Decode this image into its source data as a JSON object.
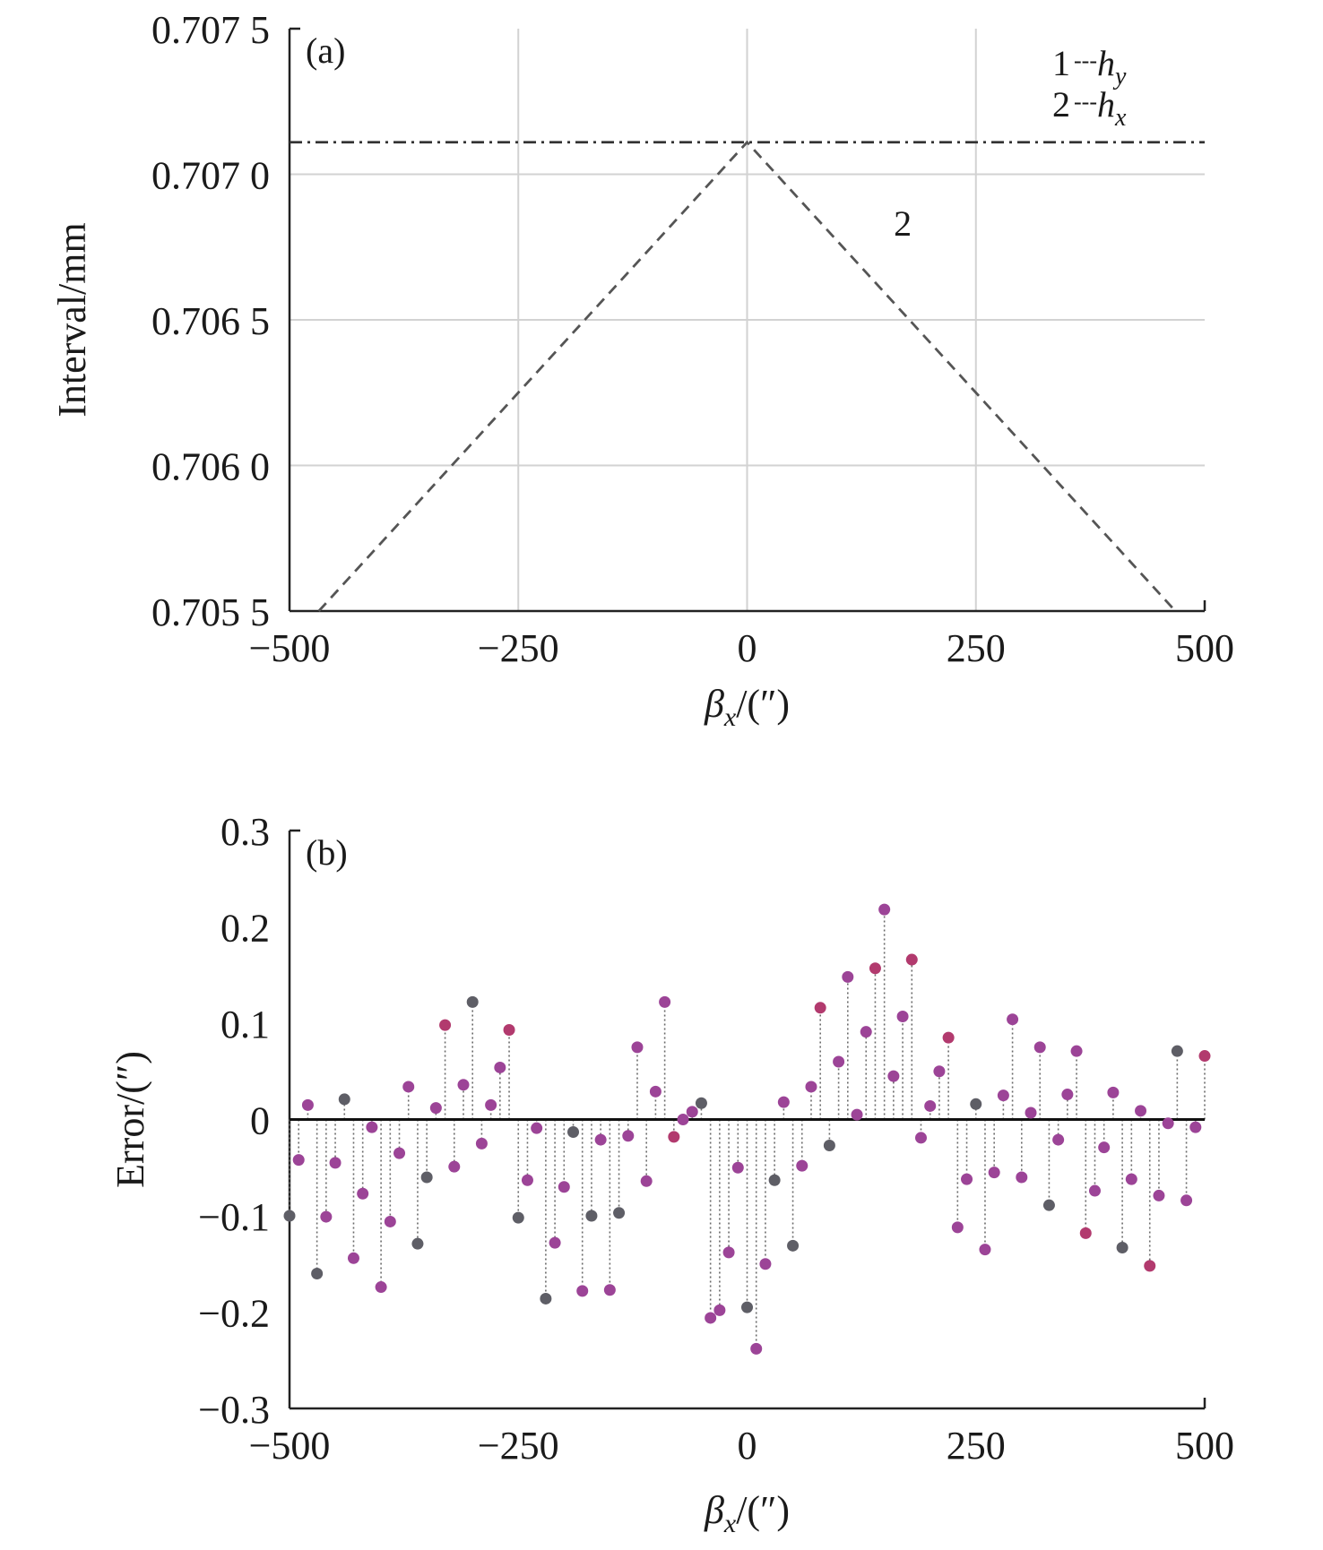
{
  "chart_data": [
    {
      "panel": "(a)",
      "type": "line",
      "xlabel": {
        "sym": "β",
        "sub": "x",
        "unit": "/(″)"
      },
      "ylabel": "Interval/mm",
      "xlim": [
        -500,
        500
      ],
      "ylim": [
        0.7055,
        0.7075
      ],
      "x_ticks": [
        -500,
        -250,
        0,
        250,
        500
      ],
      "x_tick_labels": [
        "−500",
        "−250",
        "0",
        "250",
        "500"
      ],
      "y_ticks": [
        0.7055,
        0.706,
        0.7065,
        0.707,
        0.7075
      ],
      "y_tick_labels": [
        "0.705 5",
        "0.706 0",
        "0.706 5",
        "0.707 0",
        "0.707 5"
      ],
      "grid": true,
      "legend": {
        "position": "top-right",
        "entries": [
          {
            "num": "1",
            "dash": "---",
            "sym": "h",
            "sub": "y"
          },
          {
            "num": "2",
            "dash": "---",
            "sym": "h",
            "sub": "x"
          }
        ]
      },
      "series": [
        {
          "id": "1",
          "style": "dash-dot",
          "x": [
            -500,
            500
          ],
          "y": [
            0.70711,
            0.70711
          ]
        },
        {
          "id": "2",
          "style": "dashed",
          "x": [
            -468,
            0,
            468
          ],
          "y": [
            0.7055,
            0.70711,
            0.7055
          ]
        }
      ],
      "annotations": [
        {
          "text": "2",
          "x": 170,
          "y": 0.70679
        }
      ]
    },
    {
      "panel": "(b)",
      "type": "scatter",
      "style": "stem",
      "xlabel": {
        "sym": "β",
        "sub": "x",
        "unit": "/(″)"
      },
      "ylabel": "Error/(″)",
      "xlim": [
        -500,
        500
      ],
      "ylim": [
        -0.3,
        0.3
      ],
      "x_ticks": [
        -500,
        -250,
        0,
        250,
        500
      ],
      "x_tick_labels": [
        "−500",
        "−250",
        "0",
        "250",
        "500"
      ],
      "y_ticks": [
        -0.3,
        -0.2,
        -0.1,
        0,
        0.1,
        0.2,
        0.3
      ],
      "y_tick_labels": [
        "−0.3",
        "−0.2",
        "−0.1",
        "0",
        "0.1",
        "0.2",
        "0.3"
      ],
      "grid": false,
      "colors": {
        "gray": "#5e5e66",
        "purple": "#9c4497",
        "magenta": "#b23a6e"
      },
      "points": [
        {
          "x": -500,
          "y": -0.1,
          "c": "gray"
        },
        {
          "x": -490,
          "y": -0.042,
          "c": "purple"
        },
        {
          "x": -480,
          "y": 0.015,
          "c": "purple"
        },
        {
          "x": -470,
          "y": -0.16,
          "c": "gray"
        },
        {
          "x": -460,
          "y": -0.101,
          "c": "purple"
        },
        {
          "x": -450,
          "y": -0.045,
          "c": "purple"
        },
        {
          "x": -440,
          "y": 0.021,
          "c": "gray"
        },
        {
          "x": -430,
          "y": -0.144,
          "c": "purple"
        },
        {
          "x": -420,
          "y": -0.077,
          "c": "purple"
        },
        {
          "x": -410,
          "y": -0.008,
          "c": "purple"
        },
        {
          "x": -400,
          "y": -0.174,
          "c": "purple"
        },
        {
          "x": -390,
          "y": -0.106,
          "c": "purple"
        },
        {
          "x": -380,
          "y": -0.035,
          "c": "purple"
        },
        {
          "x": -370,
          "y": 0.034,
          "c": "purple"
        },
        {
          "x": -360,
          "y": -0.129,
          "c": "gray"
        },
        {
          "x": -350,
          "y": -0.06,
          "c": "gray"
        },
        {
          "x": -340,
          "y": 0.012,
          "c": "purple"
        },
        {
          "x": -330,
          "y": 0.098,
          "c": "magenta"
        },
        {
          "x": -320,
          "y": -0.049,
          "c": "purple"
        },
        {
          "x": -310,
          "y": 0.036,
          "c": "purple"
        },
        {
          "x": -300,
          "y": 0.122,
          "c": "gray"
        },
        {
          "x": -290,
          "y": -0.025,
          "c": "purple"
        },
        {
          "x": -280,
          "y": 0.015,
          "c": "purple"
        },
        {
          "x": -270,
          "y": 0.054,
          "c": "purple"
        },
        {
          "x": -260,
          "y": 0.093,
          "c": "magenta"
        },
        {
          "x": -250,
          "y": -0.102,
          "c": "gray"
        },
        {
          "x": -240,
          "y": -0.063,
          "c": "purple"
        },
        {
          "x": -230,
          "y": -0.009,
          "c": "purple"
        },
        {
          "x": -220,
          "y": -0.186,
          "c": "gray"
        },
        {
          "x": -210,
          "y": -0.128,
          "c": "purple"
        },
        {
          "x": -200,
          "y": -0.07,
          "c": "purple"
        },
        {
          "x": -190,
          "y": -0.013,
          "c": "gray"
        },
        {
          "x": -180,
          "y": -0.178,
          "c": "purple"
        },
        {
          "x": -170,
          "y": -0.1,
          "c": "gray"
        },
        {
          "x": -160,
          "y": -0.021,
          "c": "purple"
        },
        {
          "x": -150,
          "y": -0.177,
          "c": "purple"
        },
        {
          "x": -140,
          "y": -0.097,
          "c": "gray"
        },
        {
          "x": -130,
          "y": -0.017,
          "c": "purple"
        },
        {
          "x": -120,
          "y": 0.075,
          "c": "purple"
        },
        {
          "x": -110,
          "y": -0.064,
          "c": "purple"
        },
        {
          "x": -100,
          "y": 0.029,
          "c": "purple"
        },
        {
          "x": -90,
          "y": 0.122,
          "c": "purple"
        },
        {
          "x": -80,
          "y": -0.018,
          "c": "magenta"
        },
        {
          "x": -70,
          "y": 0.0,
          "c": "purple"
        },
        {
          "x": -60,
          "y": 0.008,
          "c": "purple"
        },
        {
          "x": -50,
          "y": 0.017,
          "c": "gray"
        },
        {
          "x": -40,
          "y": -0.206,
          "c": "purple"
        },
        {
          "x": -30,
          "y": -0.198,
          "c": "purple"
        },
        {
          "x": -20,
          "y": -0.138,
          "c": "purple"
        },
        {
          "x": -10,
          "y": -0.05,
          "c": "purple"
        },
        {
          "x": 0,
          "y": -0.195,
          "c": "gray"
        },
        {
          "x": 10,
          "y": -0.238,
          "c": "purple"
        },
        {
          "x": 20,
          "y": -0.15,
          "c": "purple"
        },
        {
          "x": 30,
          "y": -0.063,
          "c": "gray"
        },
        {
          "x": 40,
          "y": 0.018,
          "c": "purple"
        },
        {
          "x": 50,
          "y": -0.131,
          "c": "gray"
        },
        {
          "x": 60,
          "y": -0.048,
          "c": "purple"
        },
        {
          "x": 70,
          "y": 0.034,
          "c": "purple"
        },
        {
          "x": 80,
          "y": 0.116,
          "c": "magenta"
        },
        {
          "x": 90,
          "y": -0.027,
          "c": "gray"
        },
        {
          "x": 100,
          "y": 0.06,
          "c": "purple"
        },
        {
          "x": 110,
          "y": 0.148,
          "c": "purple"
        },
        {
          "x": 120,
          "y": 0.005,
          "c": "purple"
        },
        {
          "x": 130,
          "y": 0.091,
          "c": "purple"
        },
        {
          "x": 140,
          "y": 0.157,
          "c": "magenta"
        },
        {
          "x": 150,
          "y": 0.218,
          "c": "purple"
        },
        {
          "x": 160,
          "y": 0.045,
          "c": "purple"
        },
        {
          "x": 170,
          "y": 0.107,
          "c": "purple"
        },
        {
          "x": 180,
          "y": 0.166,
          "c": "magenta"
        },
        {
          "x": 190,
          "y": -0.019,
          "c": "purple"
        },
        {
          "x": 200,
          "y": 0.014,
          "c": "purple"
        },
        {
          "x": 210,
          "y": 0.05,
          "c": "purple"
        },
        {
          "x": 220,
          "y": 0.085,
          "c": "magenta"
        },
        {
          "x": 230,
          "y": -0.112,
          "c": "purple"
        },
        {
          "x": 240,
          "y": -0.062,
          "c": "purple"
        },
        {
          "x": 250,
          "y": 0.016,
          "c": "gray"
        },
        {
          "x": 260,
          "y": -0.135,
          "c": "purple"
        },
        {
          "x": 270,
          "y": -0.055,
          "c": "purple"
        },
        {
          "x": 280,
          "y": 0.025,
          "c": "purple"
        },
        {
          "x": 290,
          "y": 0.104,
          "c": "purple"
        },
        {
          "x": 300,
          "y": -0.06,
          "c": "purple"
        },
        {
          "x": 310,
          "y": 0.007,
          "c": "purple"
        },
        {
          "x": 320,
          "y": 0.075,
          "c": "purple"
        },
        {
          "x": 330,
          "y": -0.089,
          "c": "gray"
        },
        {
          "x": 340,
          "y": -0.021,
          "c": "purple"
        },
        {
          "x": 350,
          "y": 0.026,
          "c": "purple"
        },
        {
          "x": 360,
          "y": 0.071,
          "c": "purple"
        },
        {
          "x": 370,
          "y": -0.118,
          "c": "magenta"
        },
        {
          "x": 380,
          "y": -0.074,
          "c": "purple"
        },
        {
          "x": 390,
          "y": -0.029,
          "c": "purple"
        },
        {
          "x": 400,
          "y": 0.028,
          "c": "purple"
        },
        {
          "x": 410,
          "y": -0.133,
          "c": "gray"
        },
        {
          "x": 420,
          "y": -0.062,
          "c": "purple"
        },
        {
          "x": 430,
          "y": 0.009,
          "c": "purple"
        },
        {
          "x": 440,
          "y": -0.152,
          "c": "magenta"
        },
        {
          "x": 450,
          "y": -0.079,
          "c": "purple"
        },
        {
          "x": 460,
          "y": -0.004,
          "c": "purple"
        },
        {
          "x": 470,
          "y": 0.071,
          "c": "gray"
        },
        {
          "x": 480,
          "y": -0.084,
          "c": "purple"
        },
        {
          "x": 490,
          "y": -0.008,
          "c": "purple"
        },
        {
          "x": 500,
          "y": 0.066,
          "c": "magenta"
        }
      ]
    }
  ]
}
